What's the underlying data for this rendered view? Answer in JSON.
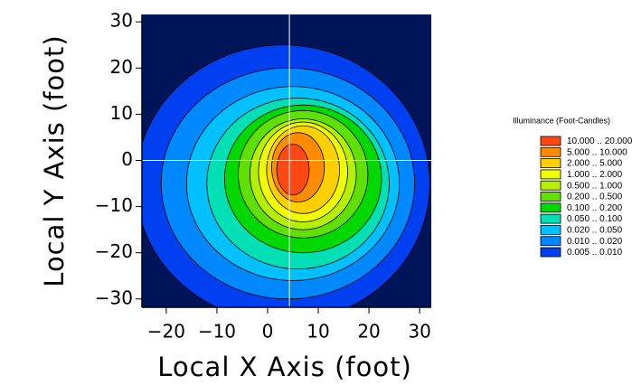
{
  "chart_data": {
    "type": "contour",
    "x_label": "Local X Axis (foot)",
    "y_label": "Local Y Axis (foot)",
    "xlim": [
      -24.8,
      32.3
    ],
    "ylim": [
      -31.8,
      31.6
    ],
    "xticks": [
      {
        "value": -20,
        "label": "−20"
      },
      {
        "value": -10,
        "label": "−10"
      },
      0,
      10,
      20,
      30
    ],
    "yticks": [
      30,
      20,
      10,
      0,
      {
        "value": -10,
        "label": "−10"
      },
      {
        "value": -20,
        "label": "−20"
      },
      {
        "value": -30,
        "label": "−30"
      }
    ],
    "background_color": "#00145a",
    "crosshair": {
      "x": 4.3,
      "y": 0,
      "color": "#ffffff"
    },
    "legend_title": "Illuminance (Foot-Candles)",
    "levels": [
      {
        "label": "10.000 .. 20.000",
        "color": "#ff4814",
        "cx": 5,
        "cy": -2,
        "rx": 3.2,
        "ry": 5.5
      },
      {
        "label": "5.000 .. 10.000",
        "color": "#ff8c00",
        "cx": 6,
        "cy": -1.5,
        "rx": 5.2,
        "ry": 7.5
      },
      {
        "label": "2.000 .. 5.000",
        "color": "#ffd000",
        "cx": 7,
        "cy": -2,
        "rx": 7.2,
        "ry": 9.5
      },
      {
        "label": "1.000 .. 2.000",
        "color": "#f0ff00",
        "cx": 7,
        "cy": -2.5,
        "rx": 8.8,
        "ry": 10.8
      },
      {
        "label": "0.500 .. 1.000",
        "color": "#b4f000",
        "cx": 7,
        "cy": -3,
        "rx": 10.5,
        "ry": 12
      },
      {
        "label": "0.200 .. 0.500",
        "color": "#60e000",
        "cx": 7,
        "cy": -3,
        "rx": 12.8,
        "ry": 13.8
      },
      {
        "label": "0.100 .. 0.200",
        "color": "#00d800",
        "cx": 7,
        "cy": -4,
        "rx": 15.5,
        "ry": 16
      },
      {
        "label": "0.050 .. 0.100",
        "color": "#00e0b4",
        "cx": 6,
        "cy": -5,
        "rx": 18,
        "ry": 18.5
      },
      {
        "label": "0.020 .. 0.050",
        "color": "#00c0ff",
        "cx": 5,
        "cy": -5,
        "rx": 21,
        "ry": 21
      },
      {
        "label": "0.010 .. 0.020",
        "color": "#0088ff",
        "cx": 4,
        "cy": -5,
        "rx": 25,
        "ry": 25
      },
      {
        "label": "0.005 .. 0.010",
        "color": "#0040f0",
        "cx": 3,
        "cy": -5,
        "rx": 29,
        "ry": 30
      }
    ]
  }
}
